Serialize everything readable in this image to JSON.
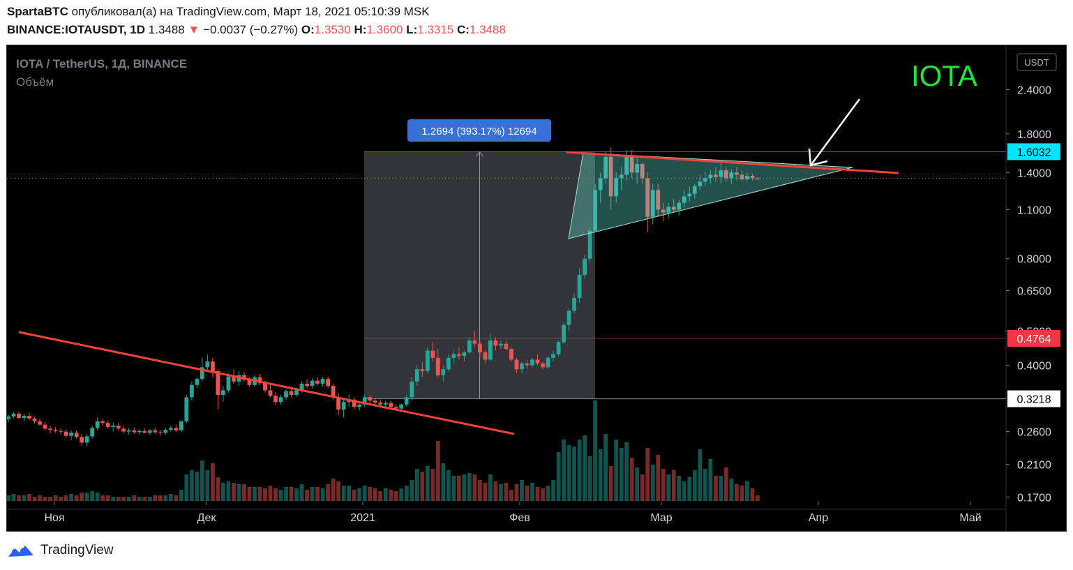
{
  "header": {
    "author": "SpartaBTC",
    "published_text": "опубликовал(а) на TradingView.com, Март 18, 2021 05:10:39 MSK",
    "symbol_line": "BINANCE:IOTAUSDT, 1D",
    "price": "1.3488",
    "change_arrow": "▼",
    "change": "−0.0037 (−0.27%)",
    "o_label": "O:",
    "o_value": "1.3530",
    "h_label": "H:",
    "h_value": "1.3600",
    "l_label": "L:",
    "l_value": "1.3315",
    "c_label": "C:",
    "c_value": "1.3488"
  },
  "chart_data": {
    "type": "candlestick",
    "title": "IOTA / TetherUS, 1Д, BINANCE",
    "subtitle": "Объём",
    "annotation_text": "IOTA",
    "currency_label": "USDT",
    "measure_label": "1.2694 (393.17%) 12694",
    "price_ticks": [
      "2.4000",
      "1.8000",
      "1.4000",
      "1.1000",
      "0.8000",
      "0.6500",
      "0.5000",
      "0.4000",
      "0.2600",
      "0.2100",
      "0.1700"
    ],
    "price_tick_values": [
      2.4,
      1.8,
      1.4,
      1.1,
      0.8,
      0.65,
      0.5,
      0.4,
      0.26,
      0.21,
      0.17
    ],
    "month_labels": [
      "Ноя",
      "Дек",
      "2021",
      "Фев",
      "Мар",
      "Апр",
      "Май"
    ],
    "price_markers": [
      {
        "label": "1.6032",
        "value": 1.6032,
        "color": "#00e5ff"
      },
      {
        "label": "0.4764",
        "value": 0.4764,
        "color": "#f23645"
      },
      {
        "label": "0.3218",
        "value": 0.3218,
        "color": "#ffffff"
      }
    ],
    "last_price": 1.3488,
    "y_scale": "log",
    "colors": {
      "up": "#26a69a",
      "down": "#ef5350",
      "trend": "#f44336",
      "triangle": "#5fd3c4",
      "title_green": "#21e63b",
      "measure_box": "#3a6fd8"
    },
    "candles": [
      [
        0.282,
        0.29,
        0.276,
        0.287
      ],
      [
        0.287,
        0.295,
        0.283,
        0.292
      ],
      [
        0.292,
        0.296,
        0.282,
        0.284
      ],
      [
        0.284,
        0.291,
        0.279,
        0.288
      ],
      [
        0.288,
        0.294,
        0.28,
        0.283
      ],
      [
        0.283,
        0.287,
        0.274,
        0.278
      ],
      [
        0.278,
        0.283,
        0.27,
        0.272
      ],
      [
        0.272,
        0.277,
        0.262,
        0.265
      ],
      [
        0.265,
        0.27,
        0.257,
        0.263
      ],
      [
        0.263,
        0.268,
        0.258,
        0.261
      ],
      [
        0.261,
        0.266,
        0.255,
        0.26
      ],
      [
        0.26,
        0.264,
        0.25,
        0.253
      ],
      [
        0.253,
        0.262,
        0.246,
        0.258
      ],
      [
        0.258,
        0.262,
        0.248,
        0.251
      ],
      [
        0.251,
        0.256,
        0.237,
        0.242
      ],
      [
        0.242,
        0.255,
        0.236,
        0.252
      ],
      [
        0.252,
        0.27,
        0.249,
        0.266
      ],
      [
        0.266,
        0.285,
        0.262,
        0.278
      ],
      [
        0.278,
        0.283,
        0.27,
        0.275
      ],
      [
        0.275,
        0.279,
        0.265,
        0.268
      ],
      [
        0.268,
        0.276,
        0.26,
        0.27
      ],
      [
        0.27,
        0.275,
        0.262,
        0.265
      ],
      [
        0.265,
        0.27,
        0.257,
        0.26
      ],
      [
        0.26,
        0.266,
        0.255,
        0.262
      ],
      [
        0.262,
        0.267,
        0.256,
        0.259
      ],
      [
        0.259,
        0.264,
        0.255,
        0.261
      ],
      [
        0.261,
        0.266,
        0.257,
        0.258
      ],
      [
        0.258,
        0.264,
        0.255,
        0.262
      ],
      [
        0.262,
        0.267,
        0.256,
        0.259
      ],
      [
        0.259,
        0.263,
        0.253,
        0.258
      ],
      [
        0.258,
        0.266,
        0.255,
        0.263
      ],
      [
        0.263,
        0.27,
        0.26,
        0.266
      ],
      [
        0.266,
        0.272,
        0.26,
        0.262
      ],
      [
        0.262,
        0.28,
        0.26,
        0.278
      ],
      [
        0.278,
        0.33,
        0.275,
        0.325
      ],
      [
        0.325,
        0.36,
        0.318,
        0.352
      ],
      [
        0.352,
        0.37,
        0.345,
        0.366
      ],
      [
        0.366,
        0.42,
        0.36,
        0.395
      ],
      [
        0.395,
        0.43,
        0.385,
        0.41
      ],
      [
        0.41,
        0.42,
        0.37,
        0.385
      ],
      [
        0.385,
        0.39,
        0.3,
        0.33
      ],
      [
        0.33,
        0.35,
        0.315,
        0.34
      ],
      [
        0.34,
        0.38,
        0.335,
        0.372
      ],
      [
        0.372,
        0.39,
        0.355,
        0.36
      ],
      [
        0.36,
        0.385,
        0.35,
        0.375
      ],
      [
        0.375,
        0.382,
        0.36,
        0.364
      ],
      [
        0.364,
        0.37,
        0.348,
        0.352
      ],
      [
        0.352,
        0.375,
        0.348,
        0.37
      ],
      [
        0.37,
        0.378,
        0.352,
        0.356
      ],
      [
        0.356,
        0.362,
        0.335,
        0.34
      ],
      [
        0.34,
        0.352,
        0.325,
        0.328
      ],
      [
        0.328,
        0.336,
        0.31,
        0.315
      ],
      [
        0.315,
        0.33,
        0.31,
        0.325
      ],
      [
        0.325,
        0.342,
        0.32,
        0.338
      ],
      [
        0.338,
        0.345,
        0.325,
        0.33
      ],
      [
        0.33,
        0.345,
        0.326,
        0.34
      ],
      [
        0.34,
        0.36,
        0.335,
        0.355
      ],
      [
        0.355,
        0.365,
        0.345,
        0.35
      ],
      [
        0.35,
        0.368,
        0.344,
        0.362
      ],
      [
        0.362,
        0.37,
        0.35,
        0.355
      ],
      [
        0.355,
        0.37,
        0.348,
        0.366
      ],
      [
        0.366,
        0.372,
        0.345,
        0.35
      ],
      [
        0.35,
        0.356,
        0.32,
        0.325
      ],
      [
        0.325,
        0.335,
        0.29,
        0.3
      ],
      [
        0.3,
        0.32,
        0.285,
        0.315
      ],
      [
        0.315,
        0.33,
        0.305,
        0.32
      ],
      [
        0.32,
        0.325,
        0.3,
        0.305
      ],
      [
        0.305,
        0.312,
        0.298,
        0.31
      ],
      [
        0.31,
        0.33,
        0.305,
        0.325
      ],
      [
        0.325,
        0.33,
        0.312,
        0.318
      ],
      [
        0.318,
        0.324,
        0.308,
        0.314
      ],
      [
        0.314,
        0.32,
        0.305,
        0.31
      ],
      [
        0.31,
        0.318,
        0.303,
        0.313
      ],
      [
        0.313,
        0.318,
        0.3,
        0.305
      ],
      [
        0.305,
        0.31,
        0.298,
        0.302
      ],
      [
        0.302,
        0.312,
        0.295,
        0.31
      ],
      [
        0.31,
        0.33,
        0.305,
        0.325
      ],
      [
        0.325,
        0.37,
        0.32,
        0.36
      ],
      [
        0.36,
        0.4,
        0.35,
        0.39
      ],
      [
        0.39,
        0.41,
        0.37,
        0.385
      ],
      [
        0.385,
        0.45,
        0.38,
        0.44
      ],
      [
        0.44,
        0.465,
        0.41,
        0.42
      ],
      [
        0.42,
        0.445,
        0.37,
        0.375
      ],
      [
        0.375,
        0.4,
        0.36,
        0.39
      ],
      [
        0.39,
        0.43,
        0.385,
        0.42
      ],
      [
        0.42,
        0.44,
        0.405,
        0.43
      ],
      [
        0.43,
        0.45,
        0.415,
        0.425
      ],
      [
        0.425,
        0.44,
        0.41,
        0.435
      ],
      [
        0.435,
        0.48,
        0.43,
        0.47
      ],
      [
        0.47,
        0.5,
        0.45,
        0.46
      ],
      [
        0.46,
        0.47,
        0.42,
        0.435
      ],
      [
        0.435,
        0.44,
        0.405,
        0.415
      ],
      [
        0.415,
        0.49,
        0.41,
        0.47
      ],
      [
        0.47,
        0.48,
        0.44,
        0.455
      ],
      [
        0.455,
        0.47,
        0.445,
        0.46
      ],
      [
        0.46,
        0.47,
        0.44,
        0.445
      ],
      [
        0.445,
        0.45,
        0.41,
        0.415
      ],
      [
        0.415,
        0.42,
        0.38,
        0.39
      ],
      [
        0.39,
        0.41,
        0.38,
        0.405
      ],
      [
        0.405,
        0.415,
        0.39,
        0.4
      ],
      [
        0.4,
        0.42,
        0.395,
        0.415
      ],
      [
        0.415,
        0.43,
        0.4,
        0.405
      ],
      [
        0.405,
        0.41,
        0.39,
        0.395
      ],
      [
        0.395,
        0.425,
        0.39,
        0.42
      ],
      [
        0.42,
        0.44,
        0.41,
        0.43
      ],
      [
        0.43,
        0.47,
        0.425,
        0.465
      ],
      [
        0.465,
        0.53,
        0.46,
        0.52
      ],
      [
        0.52,
        0.58,
        0.5,
        0.57
      ],
      [
        0.57,
        0.64,
        0.56,
        0.62
      ],
      [
        0.62,
        0.75,
        0.6,
        0.72
      ],
      [
        0.72,
        0.82,
        0.7,
        0.8
      ],
      [
        0.8,
        0.98,
        0.78,
        0.96
      ],
      [
        0.96,
        1.3,
        0.95,
        1.25
      ],
      [
        1.25,
        1.4,
        1.15,
        1.35
      ],
      [
        1.35,
        1.6,
        1.3,
        1.55
      ],
      [
        1.55,
        1.65,
        1.1,
        1.2
      ],
      [
        1.2,
        1.4,
        1.15,
        1.35
      ],
      [
        1.35,
        1.45,
        1.25,
        1.38
      ],
      [
        1.38,
        1.62,
        1.33,
        1.55
      ],
      [
        1.55,
        1.62,
        1.35,
        1.4
      ],
      [
        1.4,
        1.55,
        1.3,
        1.48
      ],
      [
        1.48,
        1.5,
        1.3,
        1.35
      ],
      [
        1.35,
        1.4,
        0.95,
        1.05
      ],
      [
        1.05,
        1.3,
        1.0,
        1.25
      ],
      [
        1.25,
        1.3,
        1.05,
        1.1
      ],
      [
        1.1,
        1.15,
        1.02,
        1.08
      ],
      [
        1.08,
        1.15,
        1.04,
        1.12
      ],
      [
        1.12,
        1.18,
        1.08,
        1.1
      ],
      [
        1.1,
        1.17,
        1.06,
        1.15
      ],
      [
        1.15,
        1.25,
        1.12,
        1.2
      ],
      [
        1.2,
        1.28,
        1.16,
        1.22
      ],
      [
        1.22,
        1.3,
        1.18,
        1.28
      ],
      [
        1.28,
        1.38,
        1.25,
        1.32
      ],
      [
        1.32,
        1.4,
        1.28,
        1.35
      ],
      [
        1.35,
        1.42,
        1.3,
        1.38
      ],
      [
        1.38,
        1.45,
        1.32,
        1.36
      ],
      [
        1.36,
        1.52,
        1.3,
        1.42
      ],
      [
        1.42,
        1.45,
        1.32,
        1.35
      ],
      [
        1.35,
        1.43,
        1.3,
        1.4
      ],
      [
        1.4,
        1.45,
        1.33,
        1.38
      ],
      [
        1.38,
        1.42,
        1.32,
        1.34
      ],
      [
        1.34,
        1.4,
        1.32,
        1.37
      ],
      [
        1.37,
        1.39,
        1.33,
        1.35
      ],
      [
        1.35,
        1.36,
        1.33,
        1.3488
      ]
    ],
    "volume": [
      4,
      5,
      4,
      4,
      5,
      3,
      4,
      3,
      3,
      4,
      3,
      4,
      5,
      4,
      6,
      6,
      7,
      6,
      4,
      4,
      3,
      3,
      3,
      3,
      4,
      3,
      3,
      3,
      4,
      4,
      4,
      5,
      4,
      8,
      19,
      22,
      21,
      29,
      22,
      27,
      17,
      13,
      14,
      13,
      12,
      12,
      10,
      10,
      10,
      9,
      11,
      9,
      8,
      10,
      10,
      9,
      12,
      8,
      10,
      10,
      9,
      12,
      16,
      14,
      11,
      11,
      8,
      9,
      11,
      10,
      9,
      7,
      9,
      8,
      7,
      9,
      11,
      15,
      23,
      21,
      25,
      23,
      43,
      27,
      22,
      18,
      18,
      19,
      20,
      19,
      15,
      13,
      19,
      14,
      12,
      13,
      8,
      12,
      15,
      11,
      13,
      10,
      9,
      11,
      15,
      35,
      44,
      40,
      39,
      44,
      47,
      32,
      72,
      37,
      48,
      25,
      44,
      38,
      42,
      31,
      24,
      19,
      38,
      26,
      33,
      23,
      19,
      22,
      18,
      14,
      17,
      22,
      37,
      23,
      30,
      18,
      18,
      24,
      16,
      12,
      11,
      14,
      9,
      4
    ]
  }
}
